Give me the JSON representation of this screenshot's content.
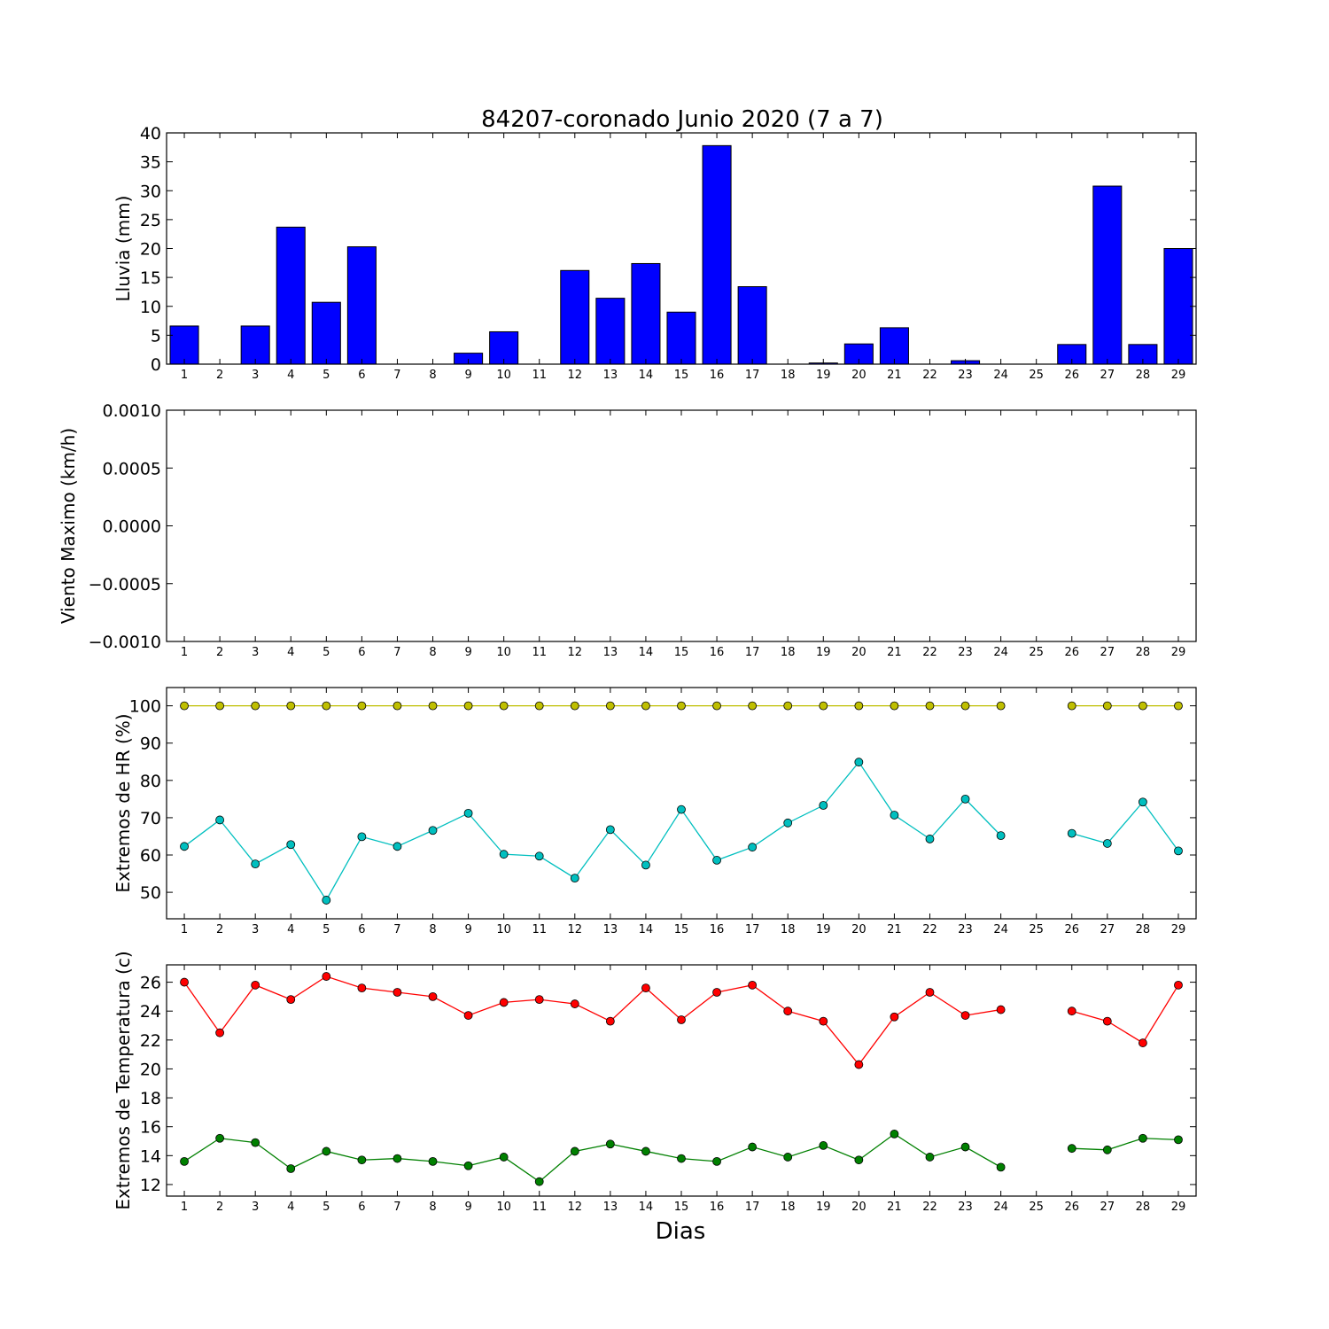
{
  "figure": {
    "title": "84207-coronado Junio 2020  (7 a 7)",
    "xlabel": "Dias"
  },
  "chart_data": [
    {
      "type": "bar",
      "ylabel": "Lluvia (mm)",
      "ylim": [
        0,
        40
      ],
      "yticks": [
        "0",
        "5",
        "10",
        "15",
        "20",
        "25",
        "30",
        "35",
        "40"
      ],
      "categories": [
        1,
        2,
        3,
        4,
        5,
        6,
        7,
        8,
        9,
        10,
        11,
        12,
        13,
        14,
        15,
        16,
        17,
        18,
        19,
        20,
        21,
        22,
        23,
        24,
        25,
        26,
        27,
        28,
        29
      ],
      "series": [
        {
          "color": "#0000ff",
          "values": [
            6.6,
            0,
            6.6,
            23.7,
            10.7,
            20.3,
            0,
            0,
            1.9,
            5.6,
            0,
            16.2,
            11.4,
            17.4,
            9.0,
            37.8,
            13.4,
            0,
            0.2,
            3.5,
            6.3,
            0,
            0.6,
            0,
            0,
            3.4,
            30.8,
            3.4,
            20.0
          ]
        }
      ],
      "grid": false
    },
    {
      "type": "line",
      "ylabel": "Viento Maximo (km/h)",
      "ylim": [
        -0.001,
        0.001
      ],
      "yticks": [
        "−0.0010",
        "−0.0005",
        "0.0000",
        "0.0005",
        "0.0010"
      ],
      "categories": [
        1,
        2,
        3,
        4,
        5,
        6,
        7,
        8,
        9,
        10,
        11,
        12,
        13,
        14,
        15,
        16,
        17,
        18,
        19,
        20,
        21,
        22,
        23,
        24,
        25,
        26,
        27,
        28,
        29
      ],
      "series": [],
      "grid": false
    },
    {
      "type": "line",
      "ylabel": "Extremos de HR (%)",
      "ylim": [
        42.9,
        104.9
      ],
      "yticks": [
        "50",
        "60",
        "70",
        "80",
        "90",
        "100"
      ],
      "categories": [
        1,
        2,
        3,
        4,
        5,
        6,
        7,
        8,
        9,
        10,
        11,
        12,
        13,
        14,
        15,
        16,
        17,
        18,
        19,
        20,
        21,
        22,
        23,
        24,
        25,
        26,
        27,
        28,
        29
      ],
      "series": [
        {
          "color": "#bfbf00",
          "values": [
            100,
            100,
            100,
            100,
            100,
            100,
            100,
            100,
            100,
            100,
            100,
            100,
            100,
            100,
            100,
            100,
            100,
            100,
            100,
            100,
            100,
            100,
            100,
            100,
            null,
            100,
            100,
            100,
            100
          ]
        },
        {
          "color": "#00bfbf",
          "values": [
            62.3,
            69.4,
            57.6,
            62.8,
            47.9,
            64.9,
            62.3,
            66.6,
            71.2,
            60.2,
            59.7,
            53.8,
            66.8,
            57.3,
            72.2,
            58.6,
            62.1,
            68.6,
            73.3,
            84.9,
            70.7,
            64.3,
            75.0,
            65.2,
            null,
            65.8,
            63.1,
            74.2,
            61.1
          ]
        }
      ],
      "grid": false
    },
    {
      "type": "line",
      "ylabel": "Extremos de Temperatura (c)",
      "ylim": [
        11.2,
        27.2
      ],
      "yticks": [
        "12",
        "14",
        "16",
        "18",
        "20",
        "22",
        "24",
        "26"
      ],
      "categories": [
        1,
        2,
        3,
        4,
        5,
        6,
        7,
        8,
        9,
        10,
        11,
        12,
        13,
        14,
        15,
        16,
        17,
        18,
        19,
        20,
        21,
        22,
        23,
        24,
        25,
        26,
        27,
        28,
        29
      ],
      "series": [
        {
          "color": "#ff0000",
          "values": [
            26.0,
            22.5,
            25.8,
            24.8,
            26.4,
            25.6,
            25.3,
            25.0,
            23.7,
            24.6,
            24.8,
            24.5,
            23.3,
            25.6,
            23.4,
            25.3,
            25.8,
            24.0,
            23.3,
            20.3,
            23.6,
            25.3,
            23.7,
            24.1,
            null,
            24.0,
            23.3,
            21.8,
            25.8
          ]
        },
        {
          "color": "#008000",
          "values": [
            13.6,
            15.2,
            14.9,
            13.1,
            14.3,
            13.7,
            13.8,
            13.6,
            13.3,
            13.9,
            12.2,
            14.3,
            14.8,
            14.3,
            13.8,
            13.6,
            14.6,
            13.9,
            14.7,
            13.7,
            15.5,
            13.9,
            14.6,
            13.2,
            null,
            14.5,
            14.4,
            15.2,
            15.1
          ]
        }
      ],
      "grid": false
    }
  ]
}
